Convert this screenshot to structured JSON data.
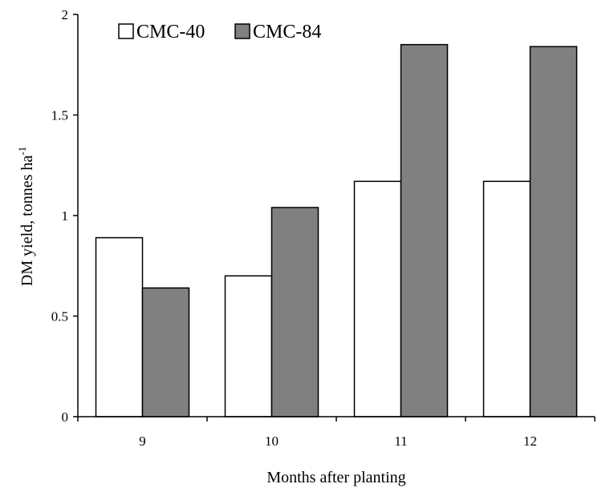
{
  "chart_data": {
    "type": "bar",
    "categories": [
      "9",
      "10",
      "11",
      "12"
    ],
    "series": [
      {
        "name": "CMC-40",
        "values": [
          0.89,
          0.7,
          1.17,
          1.17
        ],
        "color": "#ffffff"
      },
      {
        "name": "CMC-84",
        "values": [
          0.64,
          1.04,
          1.85,
          1.84
        ],
        "color": "#808080"
      }
    ],
    "ylim": [
      0,
      2
    ],
    "yticks": [
      0,
      0.5,
      1,
      1.5,
      2
    ],
    "ytick_labels": [
      "0",
      "0.5",
      "1",
      "1.5",
      "2"
    ],
    "xlabel": "Months after planting",
    "ylabel_main": "DM yield, tonnes ha",
    "ylabel_sup": "-1",
    "legend_position": "top-left",
    "grid": false
  }
}
